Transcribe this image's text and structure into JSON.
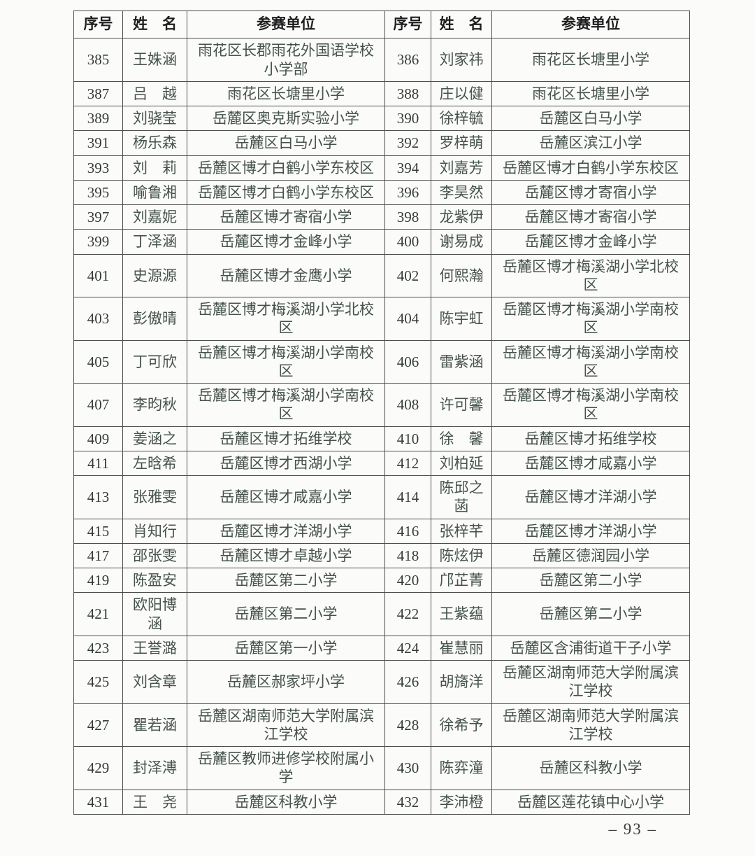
{
  "table": {
    "headers": [
      "序号",
      "姓　名",
      "参赛单位"
    ],
    "rows": [
      [
        "385",
        "王姝涵",
        "雨花区长郡雨花外国语学校小学部",
        "386",
        "刘家祎",
        "雨花区长塘里小学"
      ],
      [
        "387",
        "吕　越",
        "雨花区长塘里小学",
        "388",
        "庄以健",
        "雨花区长塘里小学"
      ],
      [
        "389",
        "刘骁莹",
        "岳麓区奥克斯实验小学",
        "390",
        "徐梓毓",
        "岳麓区白马小学"
      ],
      [
        "391",
        "杨乐森",
        "岳麓区白马小学",
        "392",
        "罗梓萌",
        "岳麓区滨江小学"
      ],
      [
        "393",
        "刘　莉",
        "岳麓区博才白鹤小学东校区",
        "394",
        "刘嘉芳",
        "岳麓区博才白鹤小学东校区"
      ],
      [
        "395",
        "喻鲁湘",
        "岳麓区博才白鹤小学东校区",
        "396",
        "李昊然",
        "岳麓区博才寄宿小学"
      ],
      [
        "397",
        "刘嘉妮",
        "岳麓区博才寄宿小学",
        "398",
        "龙紫伊",
        "岳麓区博才寄宿小学"
      ],
      [
        "399",
        "丁泽涵",
        "岳麓区博才金峰小学",
        "400",
        "谢易成",
        "岳麓区博才金峰小学"
      ],
      [
        "401",
        "史源源",
        "岳麓区博才金鹰小学",
        "402",
        "何熙瀚",
        "岳麓区博才梅溪湖小学北校区"
      ],
      [
        "403",
        "彭傲晴",
        "岳麓区博才梅溪湖小学北校区",
        "404",
        "陈宇虹",
        "岳麓区博才梅溪湖小学南校区"
      ],
      [
        "405",
        "丁可欣",
        "岳麓区博才梅溪湖小学南校区",
        "406",
        "雷紫涵",
        "岳麓区博才梅溪湖小学南校区"
      ],
      [
        "407",
        "李昀秋",
        "岳麓区博才梅溪湖小学南校区",
        "408",
        "许可馨",
        "岳麓区博才梅溪湖小学南校区"
      ],
      [
        "409",
        "姜涵之",
        "岳麓区博才拓维学校",
        "410",
        "徐　馨",
        "岳麓区博才拓维学校"
      ],
      [
        "411",
        "左晗希",
        "岳麓区博才西湖小学",
        "412",
        "刘柏延",
        "岳麓区博才咸嘉小学"
      ],
      [
        "413",
        "张雅雯",
        "岳麓区博才咸嘉小学",
        "414",
        "陈邱之菡",
        "岳麓区博才洋湖小学"
      ],
      [
        "415",
        "肖知行",
        "岳麓区博才洋湖小学",
        "416",
        "张梓芊",
        "岳麓区博才洋湖小学"
      ],
      [
        "417",
        "邵张雯",
        "岳麓区博才卓越小学",
        "418",
        "陈炫伊",
        "岳麓区德润园小学"
      ],
      [
        "419",
        "陈盈安",
        "岳麓区第二小学",
        "420",
        "邝芷菁",
        "岳麓区第二小学"
      ],
      [
        "421",
        "欧阳博涵",
        "岳麓区第二小学",
        "422",
        "王紫蕴",
        "岳麓区第二小学"
      ],
      [
        "423",
        "王誉潞",
        "岳麓区第一小学",
        "424",
        "崔慧丽",
        "岳麓区含浦街道干子小学"
      ],
      [
        "425",
        "刘含章",
        "岳麓区郝家坪小学",
        "426",
        "胡旖洋",
        "岳麓区湖南师范大学附属滨江学校"
      ],
      [
        "427",
        "瞿若涵",
        "岳麓区湖南师范大学附属滨江学校",
        "428",
        "徐希予",
        "岳麓区湖南师范大学附属滨江学校"
      ],
      [
        "429",
        "封泽溥",
        "岳麓区教师进修学校附属小学",
        "430",
        "陈弈潼",
        "岳麓区科教小学"
      ],
      [
        "431",
        "王　尧",
        "岳麓区科教小学",
        "432",
        "李沛橙",
        "岳麓区莲花镇中心小学"
      ]
    ]
  },
  "footer": {
    "page_number": "– 93 –"
  },
  "colors": {
    "body_text": "#45524b",
    "header_text": "#1d1f1e",
    "border": "#4d4f4e",
    "background": "#fbfbfa"
  }
}
